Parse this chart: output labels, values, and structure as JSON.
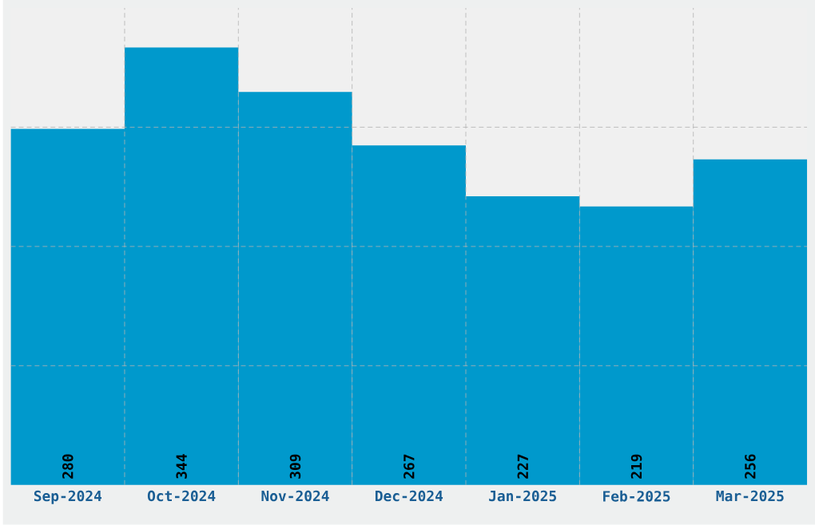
{
  "chart_data": {
    "type": "bar",
    "categories": [
      "Sep-2024",
      "Oct-2024",
      "Nov-2024",
      "Dec-2024",
      "Jan-2025",
      "Feb-2025",
      "Mar-2025"
    ],
    "values": [
      280,
      344,
      309,
      267,
      227,
      219,
      256
    ],
    "color": "#0099cc",
    "ylim": [
      0,
      375
    ],
    "yticks": [
      {
        "value": 93.75,
        "label": null
      },
      {
        "value": 187.5,
        "label": null
      },
      {
        "value": 281.25,
        "label": null
      }
    ],
    "tick_labels": "x",
    "data_labels": true,
    "grid": true
  }
}
